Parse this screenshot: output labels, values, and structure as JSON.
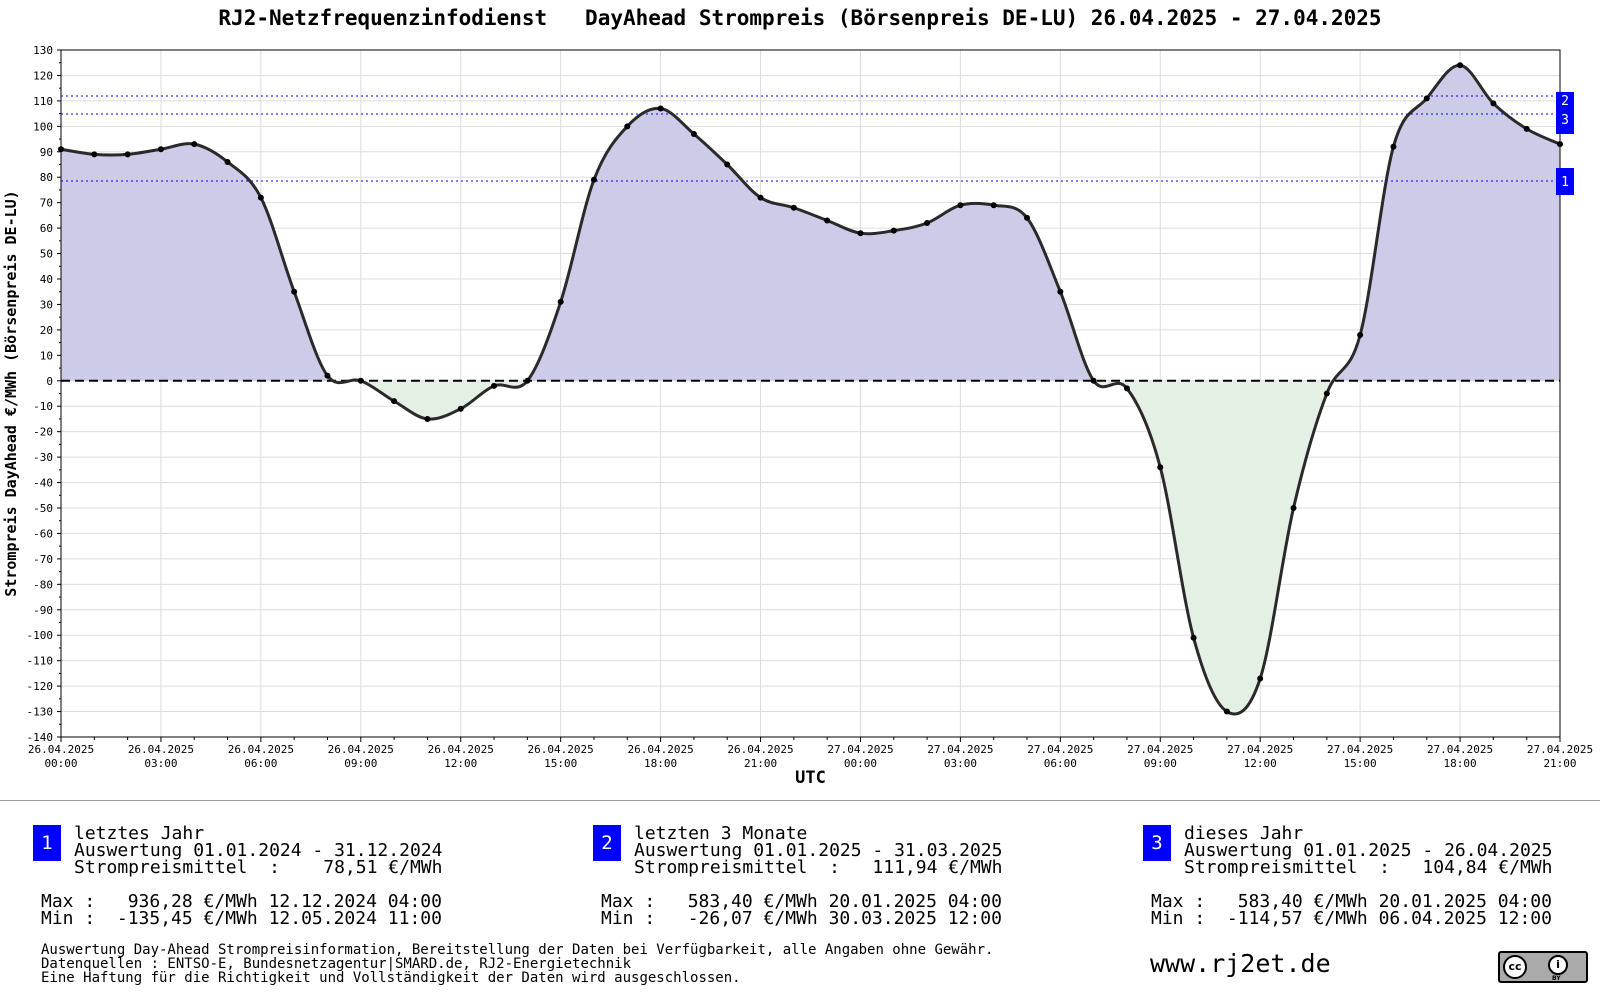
{
  "title": "RJ2-Netzfrequenzinfodienst   DayAhead Strompreis (Börsenpreis DE-LU) 26.04.2025 - 27.04.2025",
  "chart_data": {
    "type": "area",
    "title": "RJ2-Netzfrequenzinfodienst   DayAhead Strompreis (Börsenpreis DE-LU) 26.04.2025 - 27.04.2025",
    "xlabel": "UTC",
    "ylabel": "Strompreis DayAhead €/MWh (Börsenpreis DE-LU)",
    "ylim": [
      -140,
      130
    ],
    "yticks": [
      130,
      120,
      110,
      100,
      90,
      80,
      70,
      60,
      50,
      40,
      30,
      20,
      10,
      0,
      -10,
      -20,
      -30,
      -40,
      -50,
      -60,
      -70,
      -80,
      -90,
      -100,
      -110,
      -120,
      -130,
      -140
    ],
    "xticks": [
      {
        "date": "26.04.2025",
        "time": "00:00"
      },
      {
        "date": "26.04.2025",
        "time": "03:00"
      },
      {
        "date": "26.04.2025",
        "time": "06:00"
      },
      {
        "date": "26.04.2025",
        "time": "09:00"
      },
      {
        "date": "26.04.2025",
        "time": "12:00"
      },
      {
        "date": "26.04.2025",
        "time": "15:00"
      },
      {
        "date": "26.04.2025",
        "time": "18:00"
      },
      {
        "date": "26.04.2025",
        "time": "21:00"
      },
      {
        "date": "27.04.2025",
        "time": "00:00"
      },
      {
        "date": "27.04.2025",
        "time": "03:00"
      },
      {
        "date": "27.04.2025",
        "time": "06:00"
      },
      {
        "date": "27.04.2025",
        "time": "09:00"
      },
      {
        "date": "27.04.2025",
        "time": "12:00"
      },
      {
        "date": "27.04.2025",
        "time": "15:00"
      },
      {
        "date": "27.04.2025",
        "time": "18:00"
      },
      {
        "date": "27.04.2025",
        "time": "21:00"
      }
    ],
    "x_hours": [
      0,
      1,
      2,
      3,
      4,
      5,
      6,
      7,
      8,
      9,
      10,
      11,
      12,
      13,
      14,
      15,
      16,
      17,
      18,
      19,
      20,
      21,
      22,
      23,
      24,
      25,
      26,
      27,
      28,
      29,
      30,
      31,
      32,
      33,
      34,
      35,
      36,
      37,
      38,
      39,
      40,
      41,
      42,
      43,
      44,
      45
    ],
    "values": [
      91,
      89,
      89,
      91,
      93,
      86,
      72,
      35,
      2,
      0,
      -8,
      -15,
      -11,
      -2,
      0,
      31,
      79,
      100,
      107,
      97,
      85,
      72,
      68,
      63,
      58,
      59,
      62,
      69,
      69,
      64,
      35,
      0,
      -3,
      -34,
      -101,
      -130,
      -117,
      -50,
      -5,
      18,
      92,
      111,
      124,
      109,
      99,
      93
    ],
    "grid": true,
    "reference_lines": [
      {
        "id": "1",
        "value": 78.51
      },
      {
        "id": "2",
        "value": 111.94
      },
      {
        "id": "3",
        "value": 104.84
      }
    ],
    "colors": {
      "positive_fill": "#cccce8",
      "negative_fill": "#e4f0e4",
      "line": "#2a2a2a",
      "reference_line": "#0000ff",
      "badge": "#0000ff"
    }
  },
  "stats": [
    {
      "badge": "1",
      "line1": "letztes Jahr",
      "line2": "Auswertung 01.01.2024 - 31.12.2024",
      "line3": "Strompreismittel  :    78,51 €/MWh",
      "max": "Max :   936,28 €/MWh 12.12.2024 04:00",
      "min": "Min :  -135,45 €/MWh 12.05.2024 11:00"
    },
    {
      "badge": "2",
      "line1": "letzten 3 Monate",
      "line2": "Auswertung 01.01.2025 - 31.03.2025",
      "line3": "Strompreismittel  :   111,94 €/MWh",
      "max": "Max :   583,40 €/MWh 20.01.2025 04:00",
      "min": "Min :   -26,07 €/MWh 30.03.2025 12:00"
    },
    {
      "badge": "3",
      "line1": "dieses Jahr",
      "line2": "Auswertung 01.01.2025 - 26.04.2025",
      "line3": "Strompreismittel  :   104,84 €/MWh",
      "max": "Max :   583,40 €/MWh 20.01.2025 04:00",
      "min": "Min :  -114,57 €/MWh 06.04.2025 12:00"
    }
  ],
  "disclaimer": [
    "Auswertung Day-Ahead Strompreisinformation, Bereitstellung der Daten bei Verfügbarkeit, alle Angaben ohne Gewähr.",
    "Datenquellen : ENTSO-E, Bundesnetzagentur|SMARD.de, RJ2-Energietechnik",
    "Eine Haftung für die Richtigkeit und Vollständigkeit der Daten wird ausgeschlossen."
  ],
  "website": "www.rj2et.de",
  "license_logo": {
    "icon": "cc-by-icon",
    "text": "BY"
  }
}
